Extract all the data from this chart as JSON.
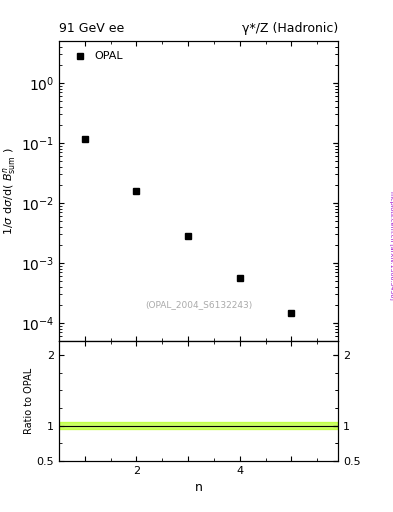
{
  "title_left": "91 GeV ee",
  "title_right": "γ*/Z (Hadronic)",
  "xlabel": "n",
  "ylabel_main": "1/σ dσ/d( Bⁿ₟ᵤᵥ )",
  "ylabel_ratio": "Ratio to OPAL",
  "watermark": "(OPAL_2004_S6132243)",
  "side_label": "mcplots.cern.ch [arXiv:1306.3436]",
  "data_x": [
    1,
    2,
    3,
    4,
    5
  ],
  "data_y": [
    0.115,
    0.016,
    0.0028,
    0.00055,
    0.000145
  ],
  "marker": "s",
  "marker_color": "black",
  "marker_size": 5,
  "legend_label": "OPAL",
  "ylim_main": [
    5e-05,
    5.0
  ],
  "xlim": [
    0.5,
    5.9
  ],
  "ratio_ylim": [
    0.5,
    2.2
  ],
  "ratio_yticks": [
    0.5,
    1.0,
    2.0
  ],
  "ratio_ytick_labels": [
    "0.5",
    "1",
    "2"
  ],
  "ratio_line_y": 1.0,
  "ratio_line_color": "#000000",
  "ratio_band_color": "#aaff00",
  "ratio_band_alpha": 0.6,
  "ratio_band_low": 0.95,
  "ratio_band_high": 1.05,
  "xticks": [
    1,
    2,
    3,
    4,
    5
  ],
  "xtick_labels": [
    "",
    "2",
    "",
    "4",
    ""
  ],
  "side_label_color": "#9900cc"
}
